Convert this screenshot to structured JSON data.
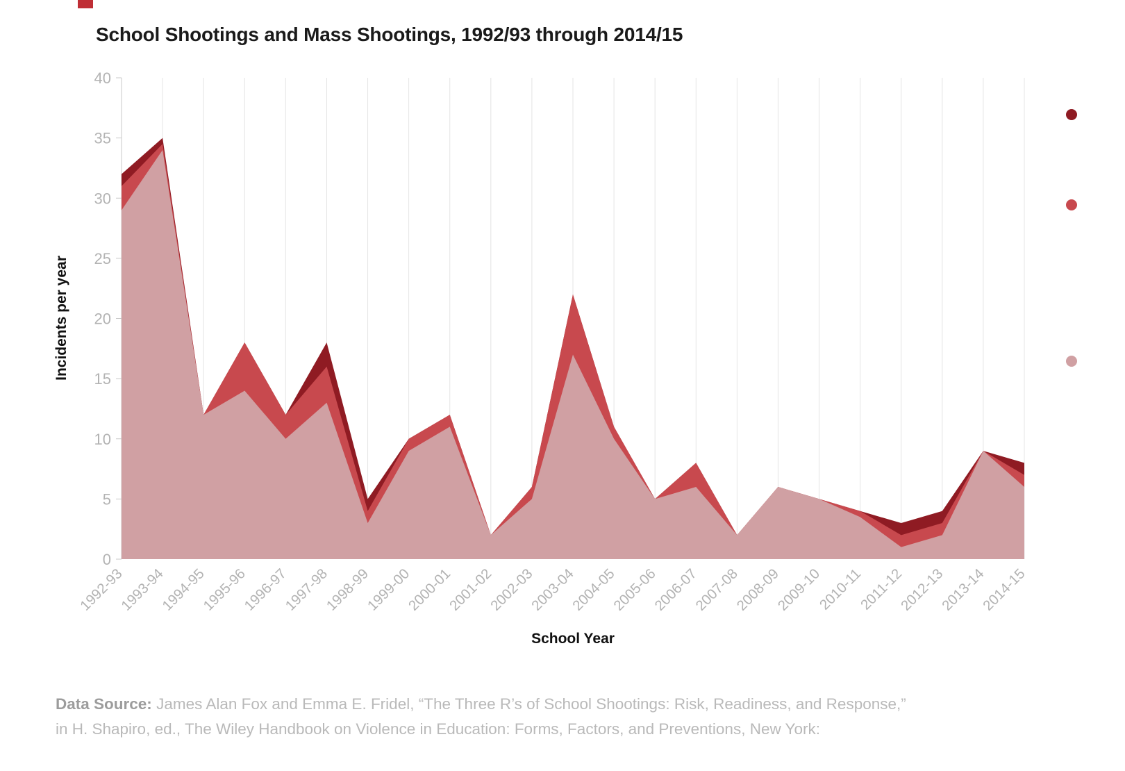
{
  "page": {
    "footer": {
      "label": "Data Source:",
      "line1": "James Alan Fox and Emma E. Fridel, “The Three R’s of School Shootings: Risk, Readiness, and Response,”",
      "line2": "in H. Shapiro, ed., The Wiley Handbook on Violence in Education: Forms, Factors, and Preventions, New York:"
    }
  },
  "chart_data": {
    "type": "area",
    "title": "School Shootings and Mass Shootings, 1992/93 through 2014/15",
    "xlabel": "School Year",
    "ylabel": "Incidents per year",
    "ylim": [
      0,
      40
    ],
    "yticks": [
      0,
      5,
      10,
      15,
      20,
      25,
      30,
      35,
      40
    ],
    "grid": "vertical-only",
    "legend_position": "right, labels cropped at image edge",
    "categories": [
      "1992-93",
      "1993-94",
      "1994-95",
      "1995-96",
      "1996-97",
      "1997-98",
      "1998-99",
      "1999-00",
      "2000-01",
      "2001-02",
      "2002-03",
      "2003-04",
      "2004-05",
      "2005-06",
      "2006-07",
      "2007-08",
      "2008-09",
      "2009-10",
      "2010-11",
      "2011-12",
      "2012-13",
      "2013-14",
      "2014-15"
    ],
    "series": [
      {
        "name": "series-1-dark-red",
        "color": "#8f1b23",
        "values": [
          32,
          35,
          12,
          18,
          12,
          18,
          5,
          10,
          12,
          2,
          6,
          22,
          11,
          5,
          8,
          2,
          6,
          5,
          4,
          3,
          4,
          9,
          8
        ]
      },
      {
        "name": "series-2-red",
        "color": "#c8494e",
        "values": [
          31,
          34.5,
          12,
          18,
          12,
          16,
          4,
          10,
          12,
          2,
          6,
          22,
          11,
          5,
          8,
          2,
          6,
          5,
          4,
          2,
          3,
          9,
          7
        ]
      },
      {
        "name": "series-3-pink",
        "color": "#d0a0a3",
        "values": [
          29,
          34,
          12,
          14,
          10,
          13,
          3,
          9,
          11,
          2,
          5,
          17,
          10,
          5,
          6,
          2,
          6,
          5,
          3.5,
          1,
          2,
          9,
          6
        ]
      }
    ],
    "legend_marker_colors": [
      "#8f1b23",
      "#c8494e",
      "#d0a0a3"
    ],
    "legend_labels_visible": false
  }
}
